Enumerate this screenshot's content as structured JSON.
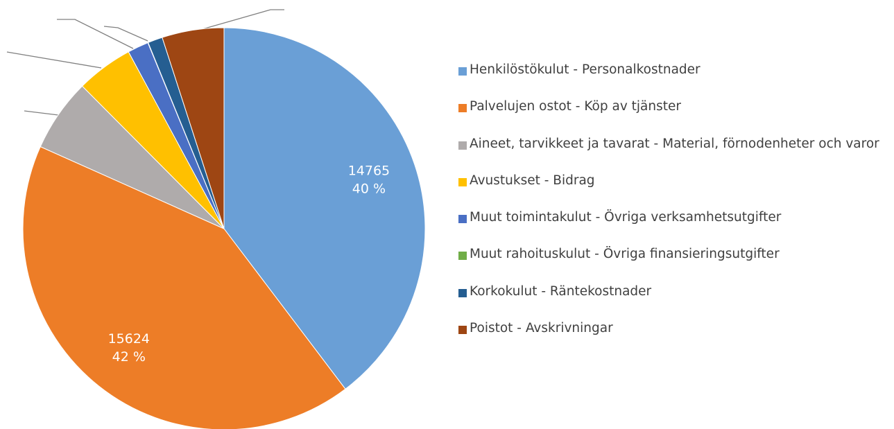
{
  "chart_data": {
    "type": "pie",
    "categories": [
      "Henkilöstökulut - Personalkostnader",
      "Palvelujen ostot - Köp av tjänster",
      "Aineet, tarvikkeet ja tavarat - Material, förnodenheter och varor",
      "Avustukset - Bidrag",
      "Muut toimintakulut - Övriga verksamhetsutgifter",
      "Muut rahoituskulut - Övriga finansieringsutgifter",
      "Korkokulut - Räntekostnader",
      "Poistot - Avskrivningar"
    ],
    "values": [
      14765,
      15624,
      2180,
      1700,
      630,
      10,
      440,
      1850
    ],
    "percent_labels": [
      "40 %",
      "42 %",
      null,
      null,
      null,
      null,
      null,
      null
    ],
    "colors": [
      "#6a9fd6",
      "#ed7d27",
      "#afabab",
      "#ffc000",
      "#4a6fc4",
      "#70ad47",
      "#255e91",
      "#9e4613"
    ],
    "legend": "right"
  }
}
